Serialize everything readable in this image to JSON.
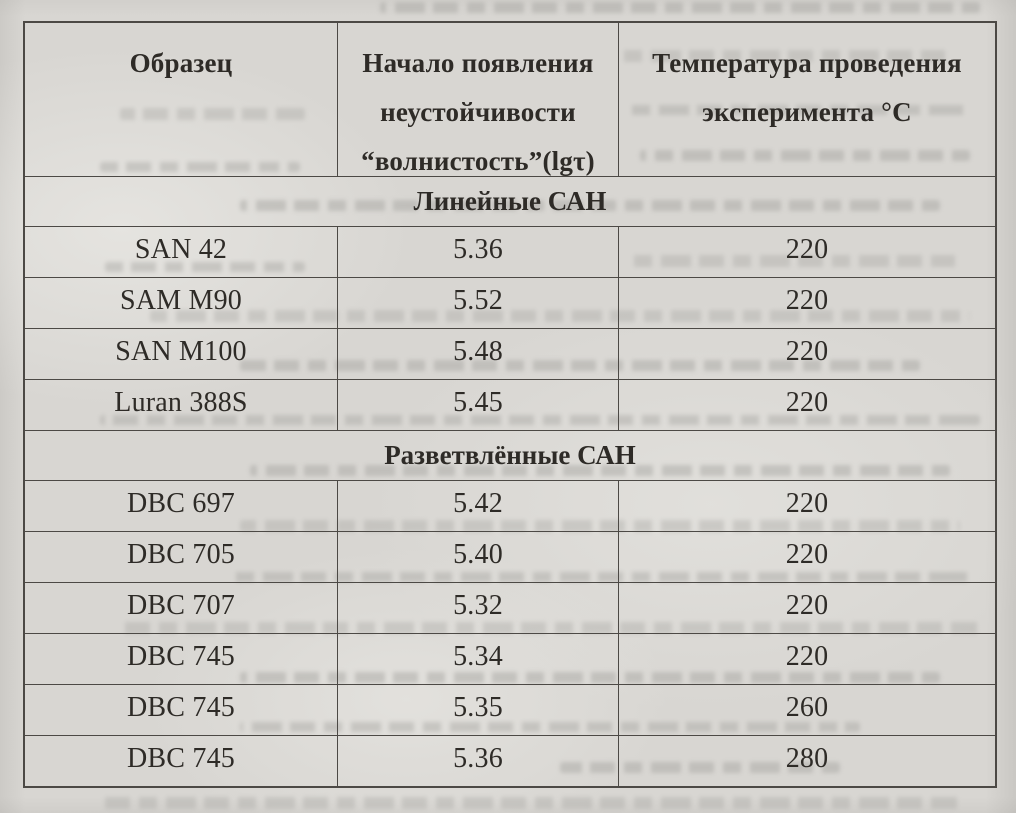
{
  "document": {
    "table": {
      "header": [
        {
          "lines": [
            "Образец"
          ]
        },
        {
          "lines": [
            "Начало появления",
            "неустойчивости",
            "“волнистость”(lgτ)"
          ]
        },
        {
          "lines": [
            "Температура проведения",
            "эксперимента °С"
          ]
        }
      ],
      "sections": [
        {
          "title": "Линейные САН",
          "rows": [
            {
              "sample": "SAN 42",
              "lg_tau": "5.36",
              "temperature": "220"
            },
            {
              "sample": "SAM M90",
              "lg_tau": "5.52",
              "temperature": "220"
            },
            {
              "sample": "SAN M100",
              "lg_tau": "5.48",
              "temperature": "220"
            },
            {
              "sample": "Luran 388S",
              "lg_tau": "5.45",
              "temperature": "220"
            }
          ]
        },
        {
          "title": "Разветвлённые САН",
          "rows": [
            {
              "sample": "DBC 697",
              "lg_tau": "5.42",
              "temperature": "220"
            },
            {
              "sample": "DBC 705",
              "lg_tau": "5.40",
              "temperature": "220"
            },
            {
              "sample": "DBC 707",
              "lg_tau": "5.32",
              "temperature": "220"
            },
            {
              "sample": "DBC 745",
              "lg_tau": "5.34",
              "temperature": "220"
            },
            {
              "sample": "DBC 745",
              "lg_tau": "5.35",
              "temperature": "260"
            },
            {
              "sample": "DBC 745",
              "lg_tau": "5.36",
              "temperature": "280"
            }
          ]
        }
      ]
    },
    "colors": {
      "paper": "#d8d6d2",
      "ink": "#2e2b27",
      "grid_line": "#4c4945",
      "ghost_text": "#a9a8a4"
    }
  }
}
